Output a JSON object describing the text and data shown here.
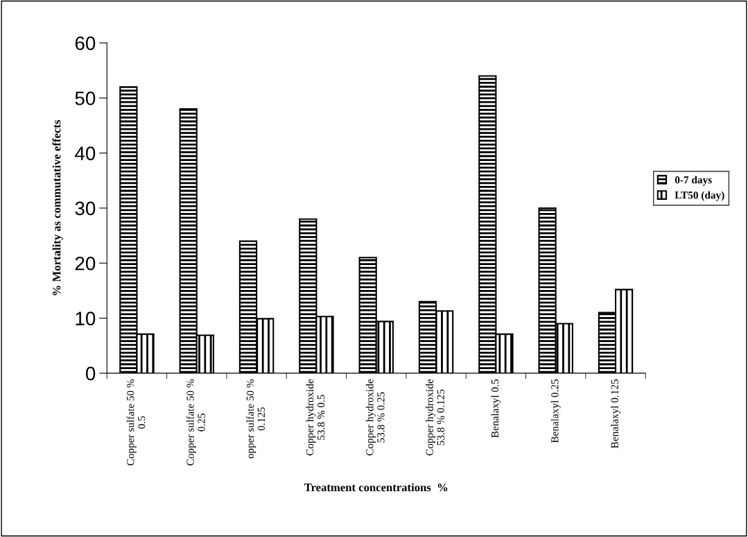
{
  "chart_data": {
    "type": "bar",
    "xlabel": "Treatment concentrations  %",
    "ylabel": "% Mortality as commutative effects",
    "categories": [
      "Copper sulfate 50 %\n0.5",
      "Copper sulfate 50 %\n0.25",
      "opper sulfate 50 %\n0.125",
      "Copper hydroxide\n53.8 % 0.5",
      "Copper hydroxide\n53.8 % 0.25",
      "Copper hydroxide\n53.8 % 0.125",
      "Benalaxyl 0.5",
      "Benalaxyl 0.25",
      "Benalaxyl 0.125"
    ],
    "series": [
      {
        "name": "0-7 days",
        "color": "#000000",
        "values": [
          52,
          48,
          24,
          28,
          21,
          13,
          54,
          30,
          11
        ]
      },
      {
        "name": "LT50 (day)",
        "color": "#000000",
        "values": [
          7.1,
          6.9,
          9.9,
          10.3,
          9.4,
          11.3,
          7.1,
          9,
          15.2
        ]
      }
    ],
    "ylim": [
      0,
      60
    ],
    "yticks": [
      0,
      10,
      20,
      30,
      40,
      50,
      60
    ],
    "grid": false,
    "legend": "right"
  }
}
